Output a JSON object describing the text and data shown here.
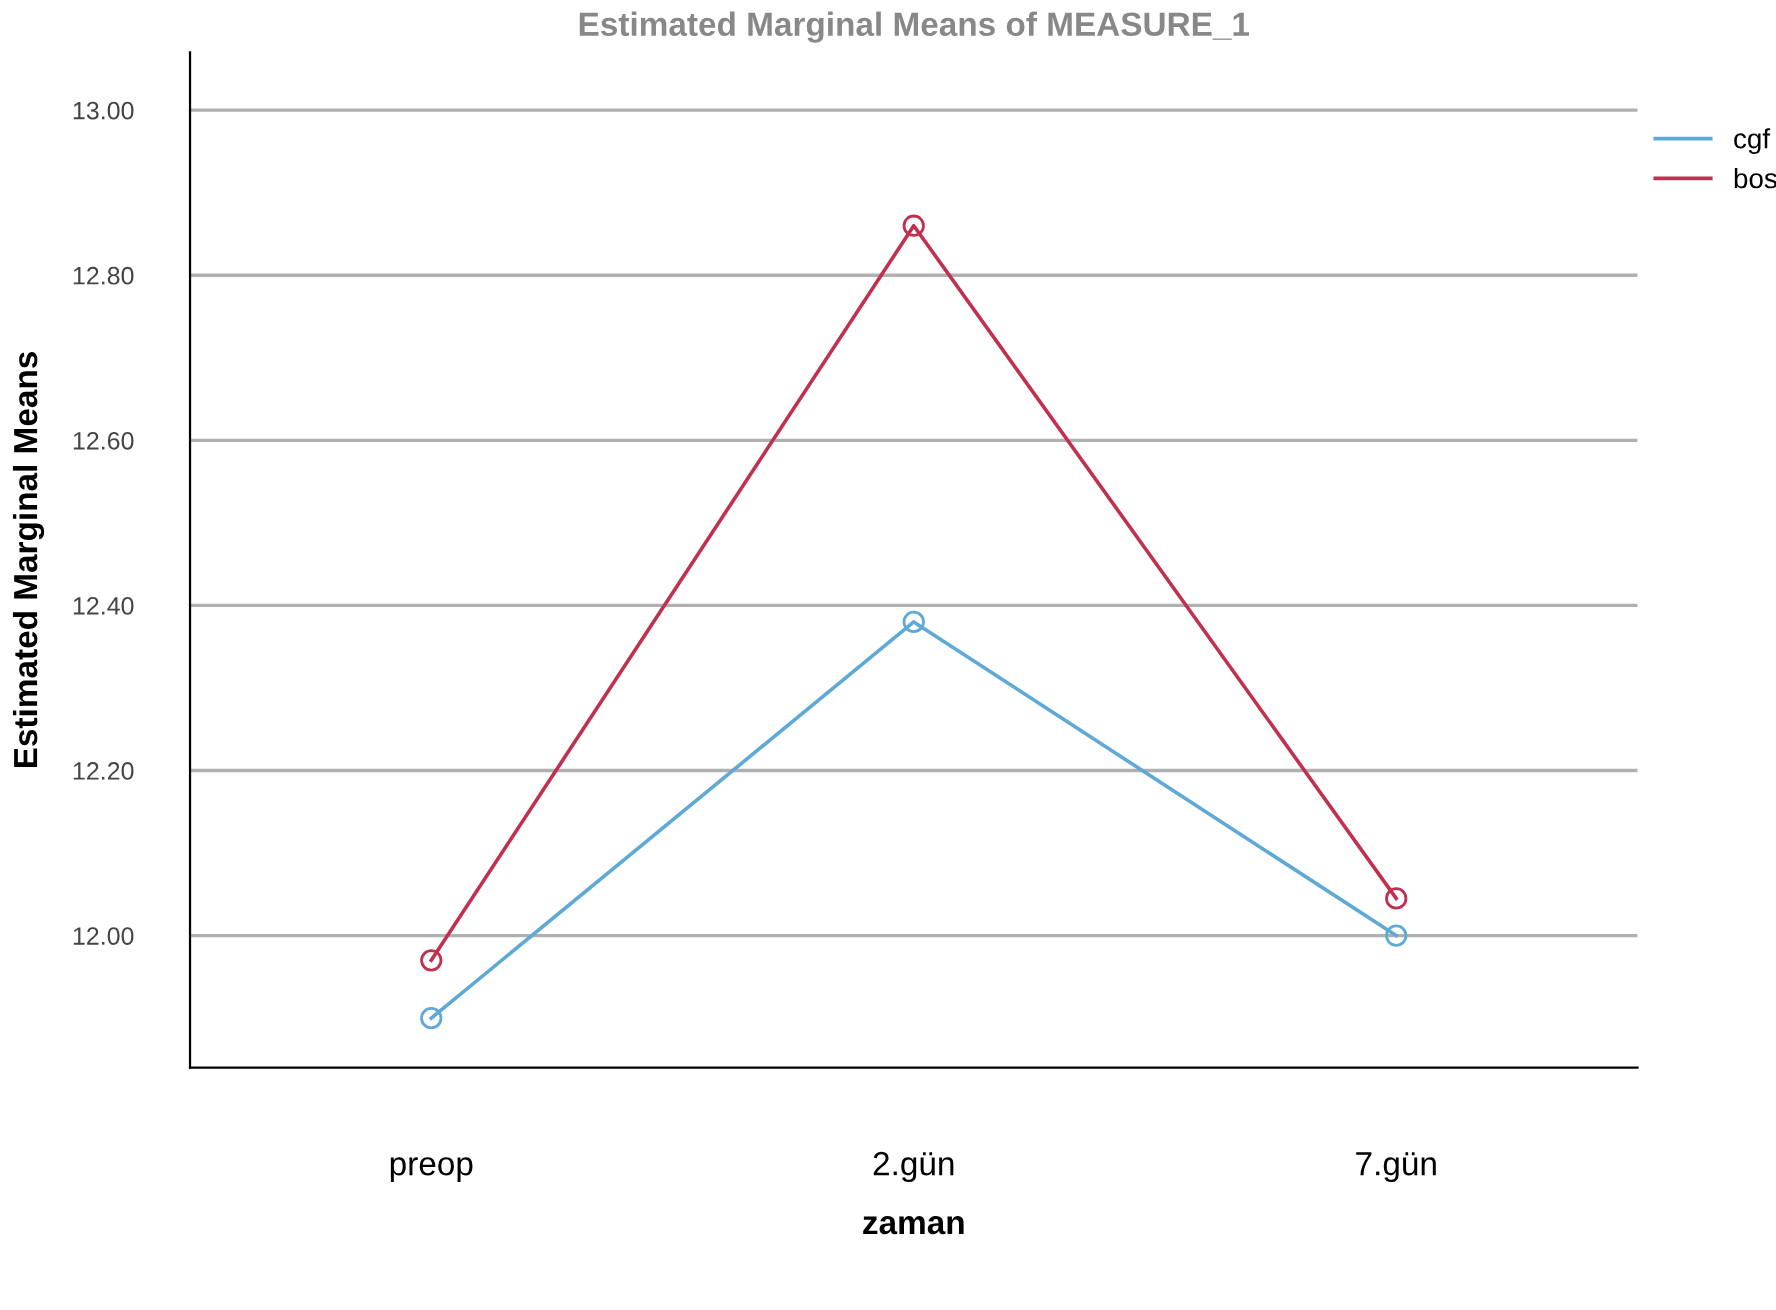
{
  "chart_data": {
    "type": "line",
    "title": "Estimated Marginal Means of MEASURE_1",
    "xlabel": "zaman",
    "ylabel": "Estimated Marginal Means",
    "categories": [
      "preop",
      "2.gün",
      "7.gün"
    ],
    "series": [
      {
        "name": "cgf",
        "color": "#5ea9d6",
        "values": [
          11.9,
          12.38,
          12.0
        ]
      },
      {
        "name": "bos",
        "color": "#c0304f",
        "values": [
          11.97,
          12.86,
          12.045
        ]
      }
    ],
    "ylim": [
      11.84,
      13.07
    ],
    "yticks": [
      {
        "value": 12.0,
        "label": "12.00"
      },
      {
        "value": 12.2,
        "label": "12.20"
      },
      {
        "value": 12.4,
        "label": "12.40"
      },
      {
        "value": 12.6,
        "label": "12.60"
      },
      {
        "value": 12.8,
        "label": "12.80"
      },
      {
        "value": 13.0,
        "label": "13.00"
      }
    ],
    "grid": "y",
    "legend": "top right",
    "marker": "circle",
    "line_style": "solid"
  }
}
